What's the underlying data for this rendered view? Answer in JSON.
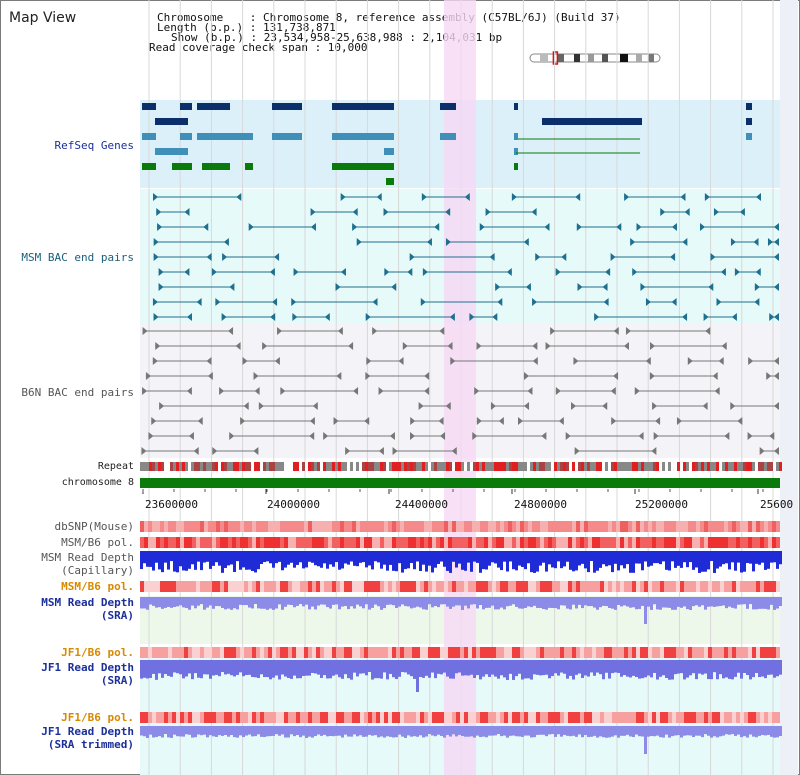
{
  "page": {
    "title": "Map View"
  },
  "header": {
    "chromosome_line": "Chromosome    : Chromosome 8, reference assembly (C57BL/6J) (Build 37)",
    "length_line": "Length (b.p.) : 131,738,871",
    "show_line": "Show (b.p.) : 23,534,958-25,638,988 : 2,104,031 bp",
    "coverage_line": "Read coverage check span : 10,000"
  },
  "labels": {
    "refseq": "RefSeq Genes",
    "msm_bac": "MSM BAC end pairs",
    "b6n_bac": "B6N BAC end pairs",
    "repeat": "Repeat",
    "chromosome": "chromosome 8",
    "dbsnp": "dbSNP(Mouse)",
    "msm_b6_pol_1": "MSM/B6 pol.",
    "msm_read_depth_cap_1": "MSM Read Depth",
    "msm_read_depth_cap_2": "(Capillary)",
    "msm_b6_pol_2": "MSM/B6 pol.",
    "msm_read_depth_sra_1": "MSM Read Depth",
    "msm_read_depth_sra_2": "(SRA)",
    "jf1_b6_pol_1": "JF1/B6 pol.",
    "jf1_read_depth_sra_1": "JF1 Read Depth",
    "jf1_read_depth_sra_2": "(SRA)",
    "jf1_b6_pol_2": "JF1/B6 pol.",
    "jf1_read_depth_trim_1": "JF1 Read Depth",
    "jf1_read_depth_trim_2": "(SRA trimmed)"
  },
  "axis": {
    "ticks": [
      "23600000",
      "24000000",
      "24400000",
      "24800000",
      "25200000",
      "25600"
    ]
  },
  "colors": {
    "refseq_bg": "#dcf0fa",
    "msm_bg": "#e6fafa",
    "b6n_bg": "#f4f4f8",
    "highlight": "#f6d8f4",
    "chromosome_bar": "#0a7a0a",
    "depth_capillary": "#1f2bd6",
    "depth_sra": "#8c8ce8",
    "pol_red": "#f07070"
  },
  "ideogram": {
    "chromosome": "8",
    "highlight_fraction": 0.18
  }
}
